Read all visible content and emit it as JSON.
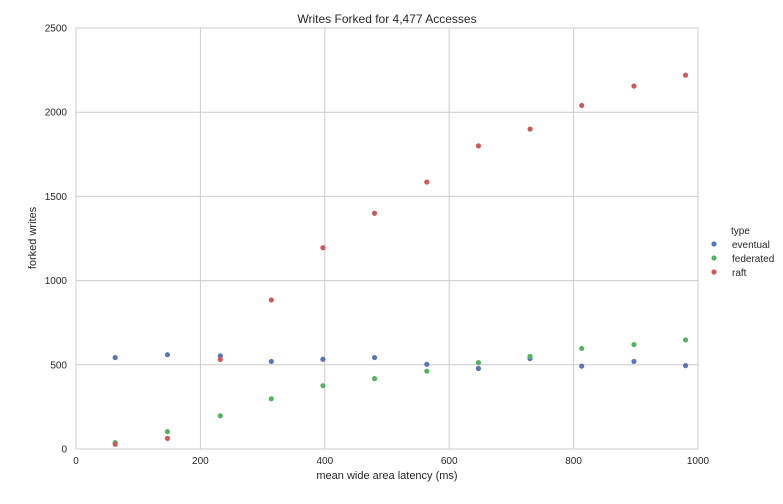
{
  "chart_data": {
    "type": "scatter",
    "title": "Writes Forked for 4,477 Accesses",
    "xlabel": "mean wide area latency (ms)",
    "ylabel": "forked writes",
    "xlim": [
      0,
      1000
    ],
    "ylim": [
      0,
      2500
    ],
    "xticks": [
      0,
      200,
      400,
      600,
      800,
      1000
    ],
    "yticks": [
      0,
      500,
      1000,
      1500,
      2000,
      2500
    ],
    "xtick_labels": [
      "0",
      "200",
      "400",
      "600",
      "800",
      "1000"
    ],
    "ytick_labels": [
      "0",
      "500",
      "1000",
      "1500",
      "2000",
      "2500"
    ],
    "grid": true,
    "legend": {
      "title": "type",
      "placement": "right"
    },
    "series": [
      {
        "name": "eventual",
        "color": "#5975b5",
        "points": [
          [
            63,
            543
          ],
          [
            147,
            560
          ],
          [
            232,
            553
          ],
          [
            314,
            520
          ],
          [
            397,
            533
          ],
          [
            480,
            543
          ],
          [
            564,
            503
          ],
          [
            647,
            478
          ],
          [
            730,
            537
          ],
          [
            813,
            492
          ],
          [
            897,
            520
          ],
          [
            980,
            495
          ]
        ]
      },
      {
        "name": "federated",
        "color": "#55b363",
        "points": [
          [
            63,
            38
          ],
          [
            147,
            103
          ],
          [
            232,
            197
          ],
          [
            314,
            298
          ],
          [
            397,
            376
          ],
          [
            480,
            418
          ],
          [
            564,
            462
          ],
          [
            647,
            513
          ],
          [
            730,
            550
          ],
          [
            813,
            597
          ],
          [
            897,
            620
          ],
          [
            980,
            648
          ]
        ]
      },
      {
        "name": "raft",
        "color": "#cc5a5a",
        "points": [
          [
            63,
            28
          ],
          [
            147,
            63
          ],
          [
            232,
            532
          ],
          [
            314,
            885
          ],
          [
            397,
            1195
          ],
          [
            480,
            1400
          ],
          [
            564,
            1585
          ],
          [
            647,
            1800
          ],
          [
            730,
            1900
          ],
          [
            813,
            2040
          ],
          [
            897,
            2155
          ],
          [
            980,
            2220
          ]
        ]
      }
    ]
  }
}
